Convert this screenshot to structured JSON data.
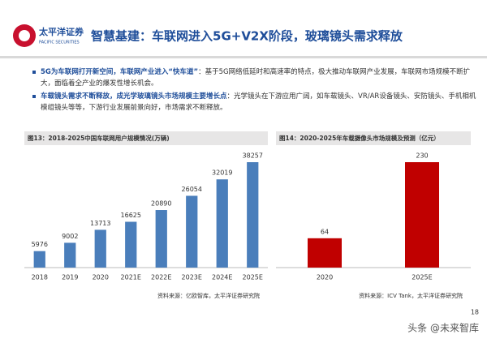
{
  "header": {
    "logo_cn": "太平洋证券",
    "logo_en": "PACIFIC SECURITIES",
    "title": "智慧基建：车联网进入5G+V2X阶段，玻璃镜头需求释放"
  },
  "bullets": [
    {
      "bold": "5G为车联网打开新空间，车联网产业进入“快车道”",
      "text": "：基于5G网络低延时和高速率的特点，极大推动车联网产业发展，车联网市场规模不断扩大，面临着全产业的爆发性增长机会。"
    },
    {
      "bold": "车载镜头需求不断释放，成光学玻璃镜头市场规模主要增长点",
      "text": "：光学镜头在下游应用广阔，如车载镜头、VR/AR设备镜头、安防镜头、手机相机模组镜头等等，下游行业发展前景向好，市场需求不断释放。"
    }
  ],
  "chart_data": [
    {
      "type": "bar",
      "title": "图13：2018-2025中国车联网用户规模情况(万辆)",
      "categories": [
        "2018",
        "2019",
        "2020",
        "2021E",
        "2022E",
        "2023E",
        "2024E",
        "2025E"
      ],
      "values": [
        5976,
        9002,
        13713,
        16625,
        20890,
        26054,
        32019,
        38257
      ],
      "color": "#4a7ebb",
      "source": "资料来源：亿欧智库，太平洋证券研究院"
    },
    {
      "type": "bar",
      "title": "图14：2020-2025年车载摄像头市场规模及预测（亿元）",
      "categories": [
        "2020",
        "2025E"
      ],
      "values": [
        64,
        230
      ],
      "color": "#c00000",
      "source": "资料来源：ICV Tank，太平洋证券研究院"
    }
  ],
  "page_number": "18",
  "watermark": "头条 @未来智库"
}
